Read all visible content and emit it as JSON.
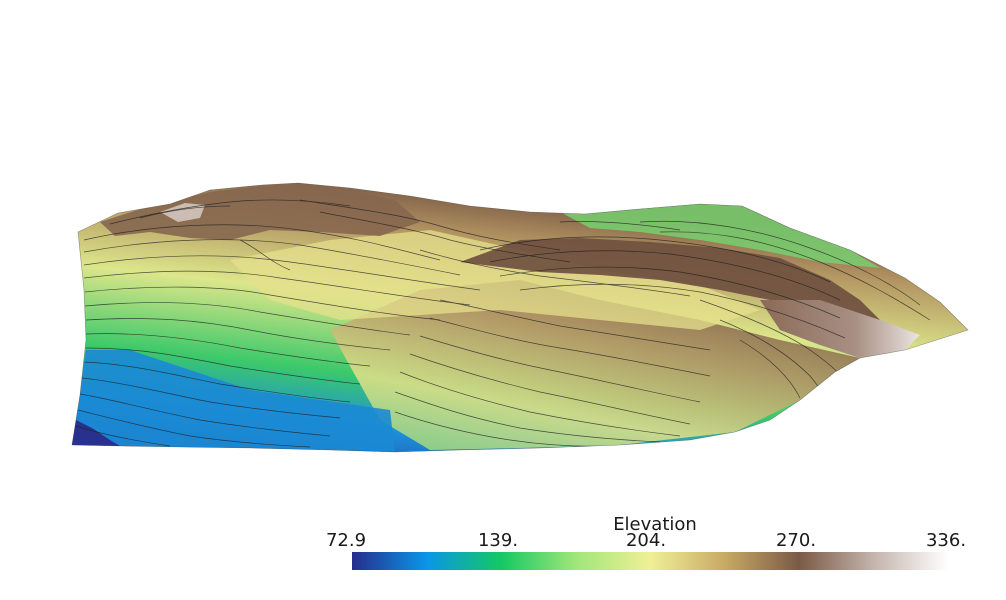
{
  "scalar_bar": {
    "title": "Elevation",
    "tick_labels": [
      "72.9",
      "139.",
      "204.",
      "270.",
      "336."
    ],
    "colormap": [
      "#262d8c",
      "#0a96e8",
      "#14c864",
      "#a0e678",
      "#f0f096",
      "#c8aa64",
      "#7a5a46",
      "#c4b4ac",
      "#ffffff"
    ]
  },
  "scene": {
    "type": "3d-terrain-surface",
    "colors": {
      "low": "#262d8c",
      "mid_low": "#1c8ed6",
      "mid": "#3cc96a",
      "mid_high": "#e6e68c",
      "high": "#7a5a46",
      "peak": "#dcd2cc",
      "contour": "#1e1e1e"
    }
  }
}
